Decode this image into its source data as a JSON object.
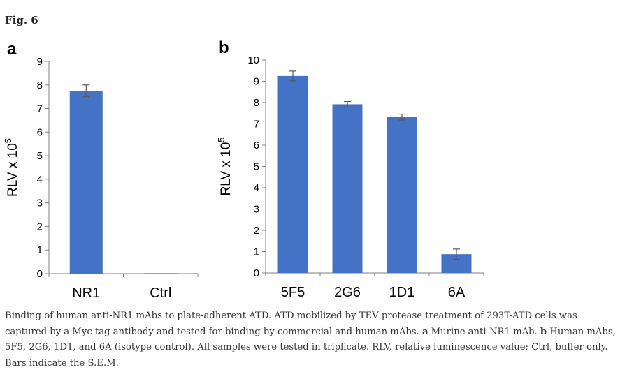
{
  "figure": {
    "label": "Fig. 6"
  },
  "chart_data": [
    {
      "panel": "a",
      "type": "bar",
      "categories": [
        "NR1",
        "Ctrl"
      ],
      "values": [
        7.75,
        0.02
      ],
      "errors": [
        0.25,
        0.0
      ],
      "ylabel_text": "RLV x 10",
      "ylabel_sup": "5",
      "ylim": [
        0,
        9
      ],
      "yticks": [
        0,
        1,
        2,
        3,
        4,
        5,
        6,
        7,
        8,
        9
      ],
      "bar_color": "#4472C4",
      "grid": false
    },
    {
      "panel": "b",
      "type": "bar",
      "categories": [
        "5F5",
        "2G6",
        "1D1",
        "6A"
      ],
      "values": [
        9.25,
        7.92,
        7.32,
        0.88
      ],
      "errors": [
        0.23,
        0.13,
        0.14,
        0.24
      ],
      "ylabel_text": "RLV x 10",
      "ylabel_sup": "5",
      "ylim": [
        0,
        10
      ],
      "yticks": [
        0,
        1,
        2,
        3,
        4,
        5,
        6,
        7,
        8,
        9,
        10
      ],
      "bar_color": "#4472C4",
      "grid": false
    }
  ],
  "caption": {
    "intro": "Binding of human anti-NR1 mAbs to plate-adherent ATD. ATD mobilized by TEV protease treatment of 293T-ATD cells was captured by a Myc tag antibody and tested for binding by commercial and human mAbs. ",
    "a_label": "a",
    "a_text": " Murine anti-NR1 mAb. ",
    "b_label": "b",
    "b_text": " Human mAbs, 5F5, 2G6, 1D1, and 6A (isotype control). All samples were tested in triplicate. RLV, relative luminescence value; Ctrl, buffer only. Bars indicate the S.E.M."
  }
}
